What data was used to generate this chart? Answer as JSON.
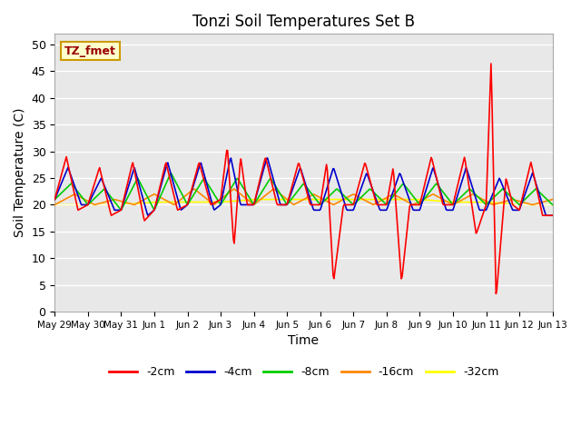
{
  "title": "Tonzi Soil Temperatures Set B",
  "xlabel": "Time",
  "ylabel": "Soil Temperature (C)",
  "ylim": [
    0,
    52
  ],
  "yticks": [
    0,
    5,
    10,
    15,
    20,
    25,
    30,
    35,
    40,
    45,
    50
  ],
  "bg_color": "#e8e8e8",
  "annotation_text": "TZ_fmet",
  "annotation_bg": "#ffffcc",
  "annotation_border": "#cc9900",
  "annotation_text_color": "#990000",
  "legend_labels": [
    "-2cm",
    "-4cm",
    "-8cm",
    "-16cm",
    "-32cm"
  ],
  "legend_colors": [
    "#ff0000",
    "#0000cc",
    "#00cc00",
    "#ff8800",
    "#ffff00"
  ],
  "x_tick_labels": [
    "May 29",
    "May 30",
    "May 31",
    "Jun 1",
    "Jun 2",
    "Jun 3",
    "Jun 4",
    "Jun 5",
    "Jun 6",
    "Jun 7",
    "Jun 8",
    "Jun 9",
    "Jun 10",
    "Jun 11",
    "Jun 12",
    "Jun 13"
  ],
  "series_linewidth": 1.2
}
